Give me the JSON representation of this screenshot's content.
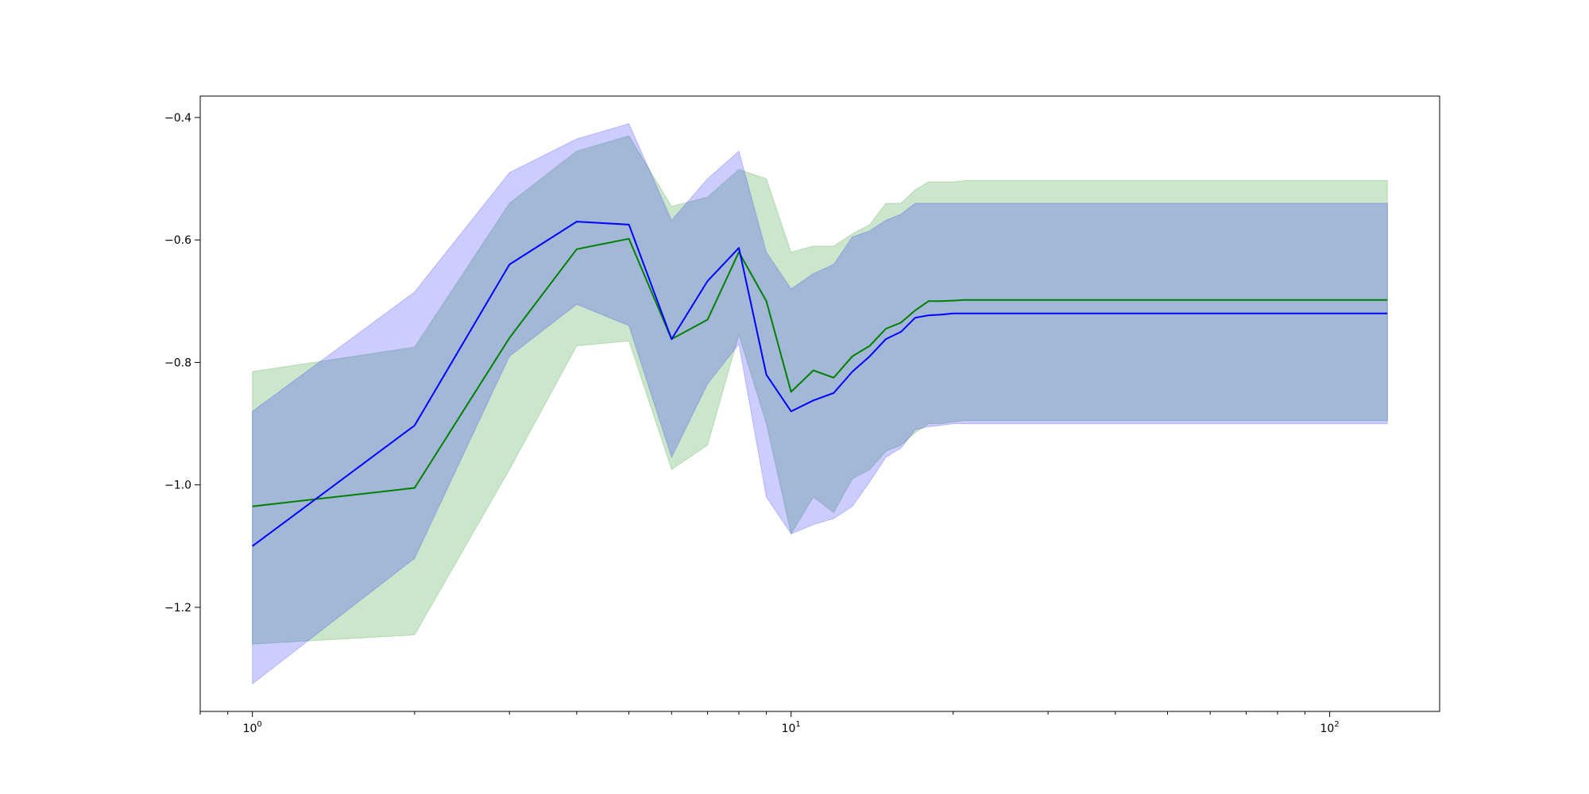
{
  "chart_data": {
    "type": "line",
    "title": "",
    "xlabel": "",
    "ylabel": "",
    "xscale": "log",
    "xlim": [
      0.8,
      160
    ],
    "ylim": [
      -1.37,
      -0.365
    ],
    "grid": false,
    "legend": "none",
    "x_ticks": [
      {
        "base": "10",
        "exp": "0",
        "value": 1
      },
      {
        "base": "10",
        "exp": "1",
        "value": 10
      },
      {
        "base": "10",
        "exp": "2",
        "value": 100
      }
    ],
    "y_ticks": [
      {
        "value": -0.4,
        "label": "−0.4"
      },
      {
        "value": -0.6,
        "label": "−0.6"
      },
      {
        "value": -0.8,
        "label": "−0.8"
      },
      {
        "value": -1.0,
        "label": "−1.0"
      },
      {
        "value": -1.2,
        "label": "−1.2"
      }
    ],
    "x": [
      1,
      2,
      3,
      4,
      5,
      6,
      7,
      8,
      9,
      10,
      11,
      12,
      13,
      14,
      15,
      16,
      17,
      18,
      19,
      20,
      21,
      22,
      23,
      25,
      30,
      40,
      50,
      70,
      100,
      128
    ],
    "series": [
      {
        "color": "#008000",
        "band_color": "#008000",
        "values": [
          -1.035,
          -1.005,
          -0.76,
          -0.615,
          -0.598,
          -0.762,
          -0.73,
          -0.62,
          -0.7,
          -0.848,
          -0.813,
          -0.825,
          -0.79,
          -0.773,
          -0.745,
          -0.735,
          -0.715,
          -0.7,
          -0.7,
          -0.699,
          -0.698,
          -0.698,
          -0.698,
          -0.698,
          -0.698,
          -0.698,
          -0.698,
          -0.698,
          -0.698,
          -0.698
        ],
        "upper": [
          -0.815,
          -0.775,
          -0.54,
          -0.455,
          -0.43,
          -0.545,
          -0.53,
          -0.485,
          -0.5,
          -0.62,
          -0.61,
          -0.61,
          -0.59,
          -0.575,
          -0.54,
          -0.54,
          -0.518,
          -0.505,
          -0.505,
          -0.505,
          -0.503,
          -0.503,
          -0.503,
          -0.503,
          -0.503,
          -0.503,
          -0.503,
          -0.503,
          -0.503,
          -0.503
        ],
        "lower": [
          -1.26,
          -1.245,
          -0.975,
          -0.773,
          -0.765,
          -0.975,
          -0.935,
          -0.755,
          -0.9,
          -1.08,
          -1.02,
          -1.045,
          -0.99,
          -0.975,
          -0.945,
          -0.935,
          -0.915,
          -0.9,
          -0.9,
          -0.897,
          -0.895,
          -0.895,
          -0.895,
          -0.895,
          -0.895,
          -0.895,
          -0.895,
          -0.895,
          -0.895,
          -0.895
        ]
      },
      {
        "color": "#0000ff",
        "band_color": "#0000ff",
        "values": [
          -1.1,
          -0.903,
          -0.64,
          -0.57,
          -0.575,
          -0.762,
          -0.667,
          -0.613,
          -0.82,
          -0.88,
          -0.862,
          -0.85,
          -0.815,
          -0.79,
          -0.762,
          -0.75,
          -0.727,
          -0.723,
          -0.722,
          -0.72,
          -0.72,
          -0.72,
          -0.72,
          -0.72,
          -0.72,
          -0.72,
          -0.72,
          -0.72,
          -0.72,
          -0.72
        ],
        "upper": [
          -0.88,
          -0.685,
          -0.49,
          -0.435,
          -0.41,
          -0.568,
          -0.5,
          -0.455,
          -0.62,
          -0.68,
          -0.655,
          -0.64,
          -0.595,
          -0.585,
          -0.568,
          -0.558,
          -0.54,
          -0.54,
          -0.54,
          -0.54,
          -0.54,
          -0.54,
          -0.54,
          -0.54,
          -0.54,
          -0.54,
          -0.54,
          -0.54,
          -0.54,
          -0.54
        ],
        "lower": [
          -1.325,
          -1.12,
          -0.79,
          -0.705,
          -0.74,
          -0.955,
          -0.835,
          -0.77,
          -1.02,
          -1.08,
          -1.065,
          -1.055,
          -1.035,
          -0.995,
          -0.955,
          -0.94,
          -0.91,
          -0.905,
          -0.903,
          -0.9,
          -0.9,
          -0.9,
          -0.9,
          -0.9,
          -0.9,
          -0.9,
          -0.9,
          -0.9,
          -0.9,
          -0.9
        ]
      }
    ]
  }
}
